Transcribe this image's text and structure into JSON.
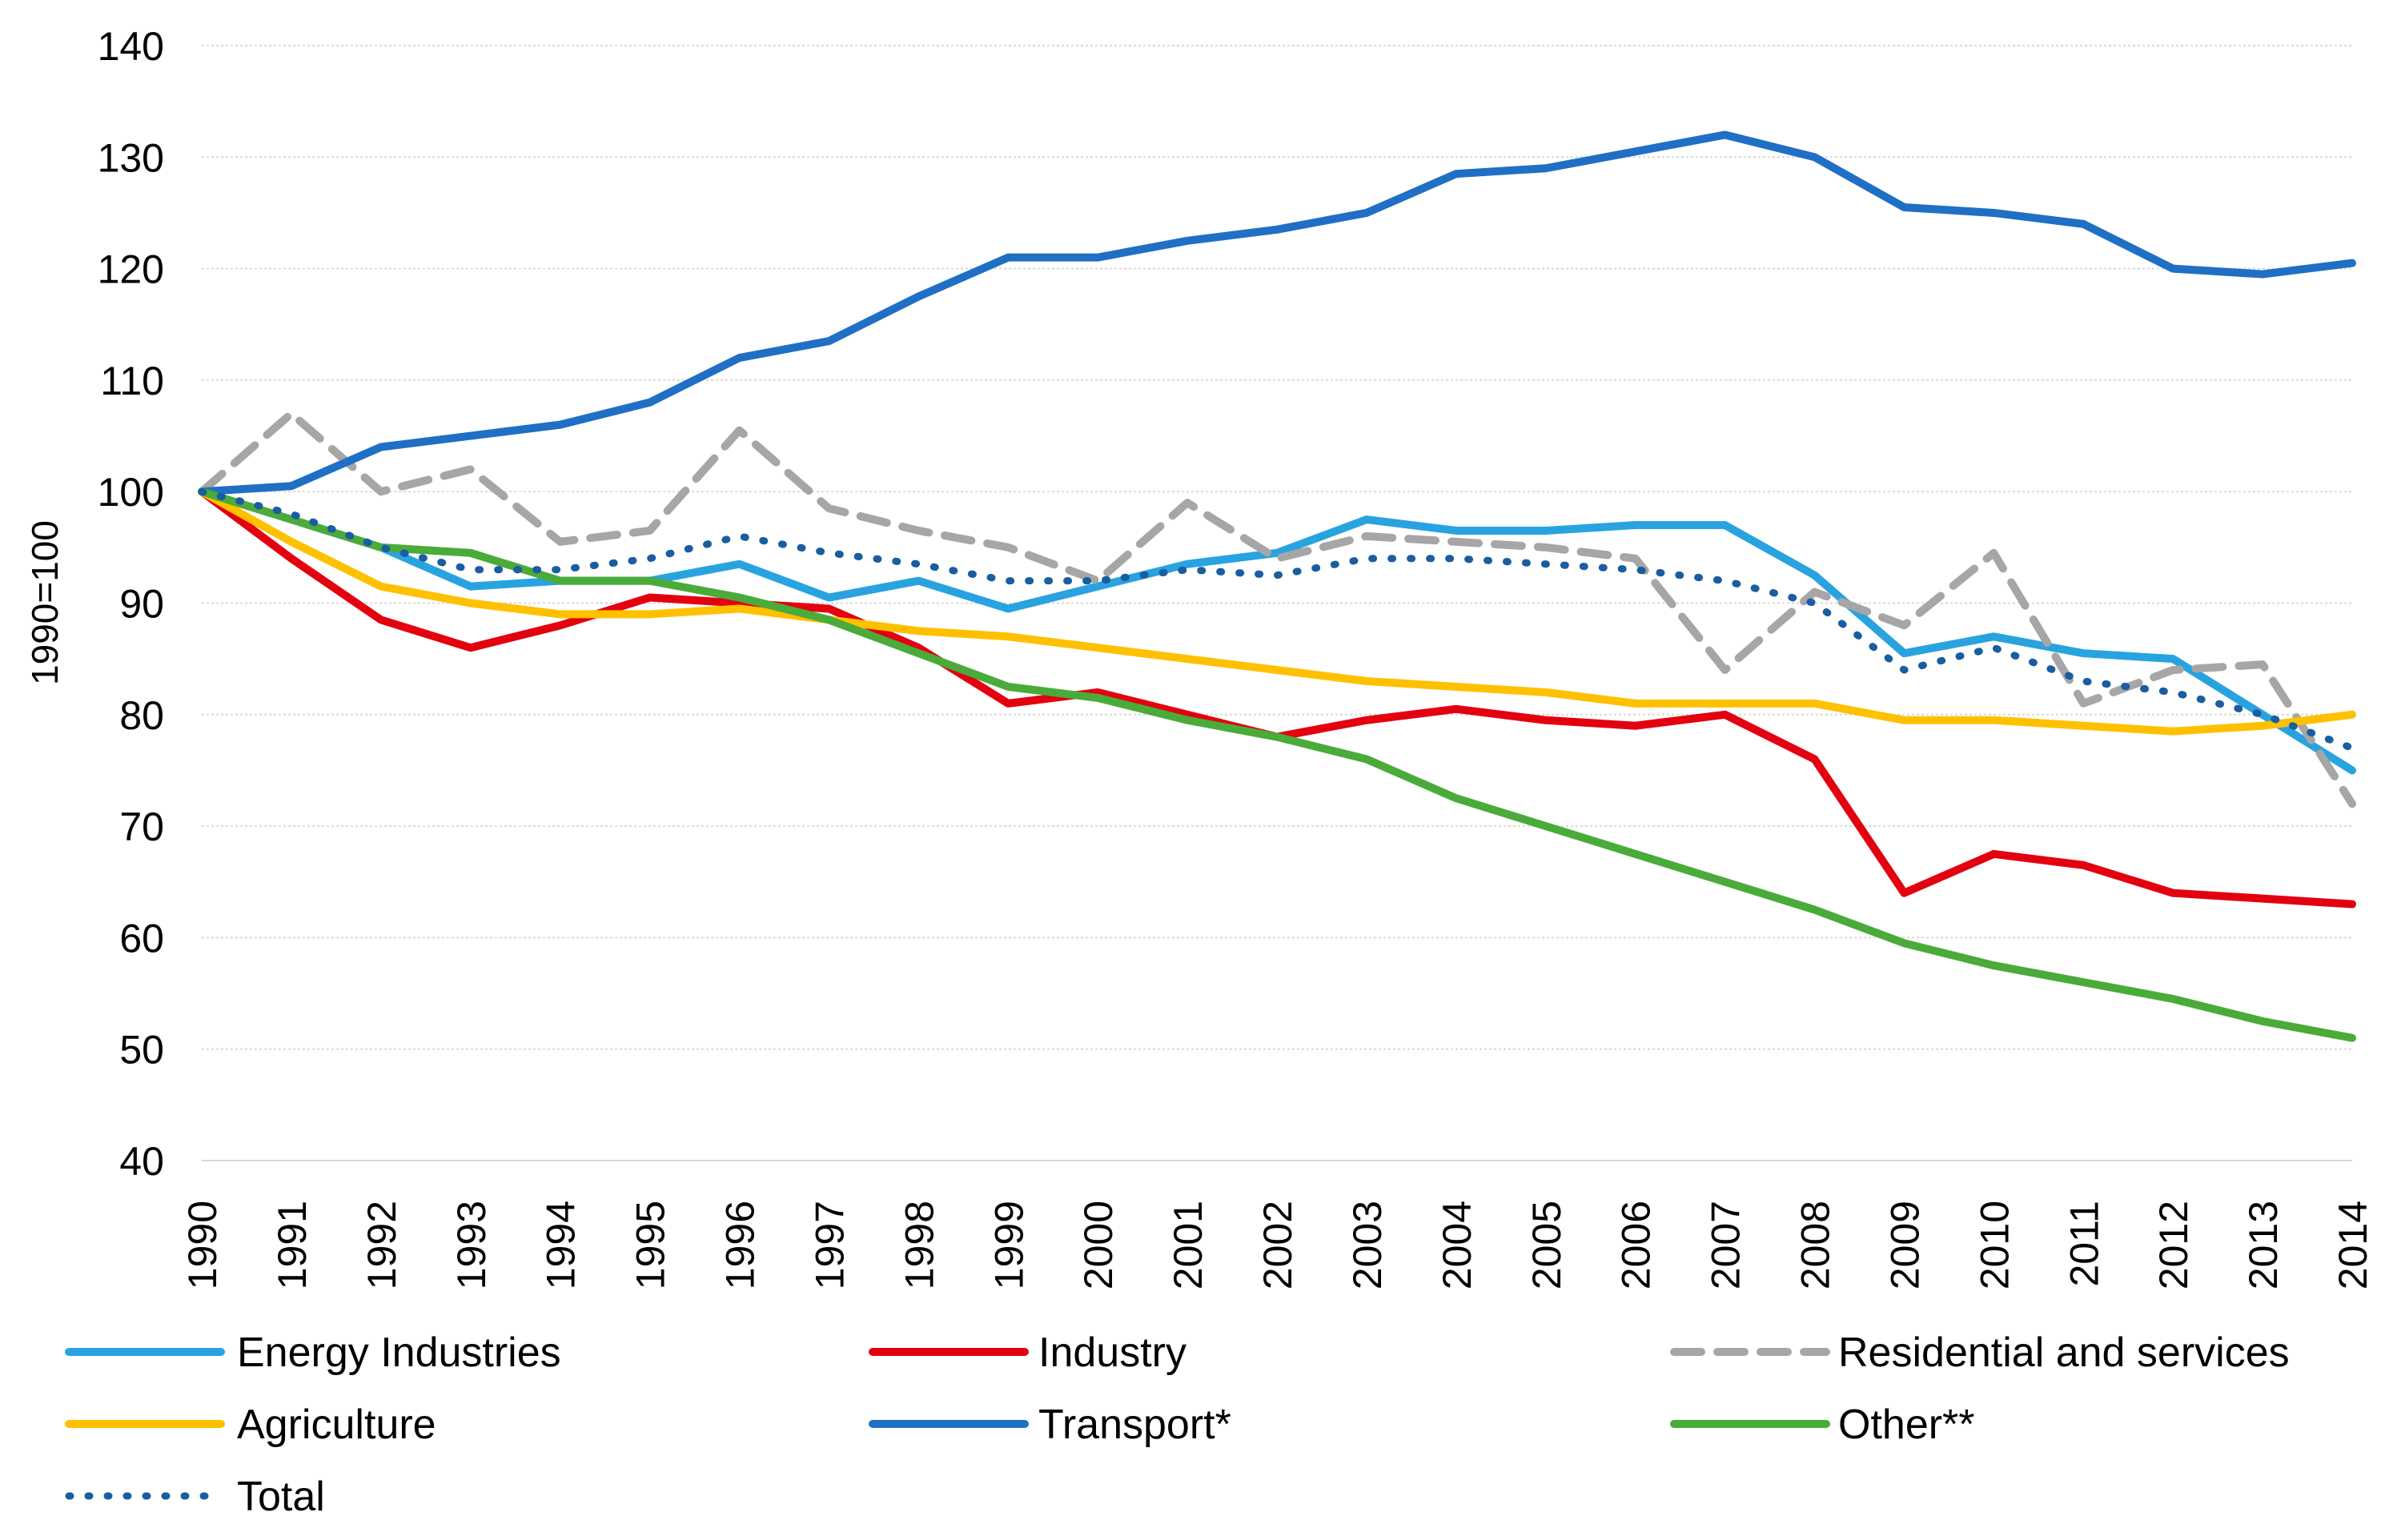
{
  "chart_data": {
    "type": "line",
    "title": "",
    "xlabel": "",
    "ylabel": "1990=100",
    "ylim": [
      40,
      140
    ],
    "yticks": [
      40,
      50,
      60,
      70,
      80,
      90,
      100,
      110,
      120,
      130,
      140
    ],
    "grid": true,
    "legend_position": "bottom",
    "x": [
      "1990",
      "1991",
      "1992",
      "1993",
      "1994",
      "1995",
      "1996",
      "1997",
      "1998",
      "1999",
      "2000",
      "2001",
      "2002",
      "2003",
      "2004",
      "2005",
      "2006",
      "2007",
      "2008",
      "2009",
      "2010",
      "2011",
      "2012",
      "2013",
      "2014"
    ],
    "series": [
      {
        "name": "Energy Industries",
        "color": "#29a3e0",
        "dash": "solid",
        "values": [
          100,
          97.5,
          95,
          91.5,
          92,
          92,
          93.5,
          90.5,
          92,
          89.5,
          91.5,
          93.5,
          94.5,
          97.5,
          96.5,
          96.5,
          97,
          97,
          92.5,
          85.5,
          87,
          85.5,
          85,
          80,
          75
        ]
      },
      {
        "name": "Industry",
        "color": "#e3000f",
        "dash": "solid",
        "values": [
          100,
          94,
          88.5,
          86,
          88,
          90.5,
          90,
          89.5,
          86,
          81,
          82,
          80,
          78,
          79.5,
          80.5,
          79.5,
          79,
          80,
          76,
          64,
          67.5,
          66.5,
          64,
          63.5,
          63
        ]
      },
      {
        "name": "Residential and services",
        "color": "#a6a6a6",
        "dash": "dashed",
        "values": [
          100,
          107,
          100,
          102,
          95.5,
          96.5,
          105.5,
          98.5,
          96.5,
          95,
          92,
          99,
          94,
          96,
          95.5,
          95,
          94,
          84,
          91,
          88,
          94.5,
          81,
          84,
          84.5,
          72
        ]
      },
      {
        "name": "Agriculture",
        "color": "#ffc000",
        "dash": "solid",
        "values": [
          100,
          95.5,
          91.5,
          90,
          89,
          89,
          89.5,
          88.5,
          87.5,
          87,
          86,
          85,
          84,
          83,
          82.5,
          82,
          81,
          81,
          81,
          79.5,
          79.5,
          79,
          78.5,
          79,
          80
        ]
      },
      {
        "name": "Transport*",
        "color": "#1f6fc5",
        "dash": "solid",
        "values": [
          100,
          100.5,
          104,
          105,
          106,
          108,
          112,
          113.5,
          117.5,
          121,
          121,
          122.5,
          123.5,
          125,
          128.5,
          129,
          130.5,
          132,
          130,
          125.5,
          125,
          124,
          120,
          119.5,
          120.5
        ]
      },
      {
        "name": "Other**",
        "color": "#4aab3a",
        "dash": "solid",
        "values": [
          100,
          97.5,
          95,
          94.5,
          92,
          92,
          90.5,
          88.5,
          85.5,
          82.5,
          81.5,
          79.5,
          78,
          76,
          72.5,
          70,
          67.5,
          65,
          62.5,
          59.5,
          57.5,
          56,
          54.5,
          52.5,
          51
        ]
      },
      {
        "name": "Total",
        "color": "#1a5da0",
        "dash": "dotted",
        "values": [
          100,
          98,
          95,
          93,
          93,
          94,
          96,
          94.5,
          93.5,
          92,
          92,
          93,
          92.5,
          94,
          94,
          93.5,
          93,
          92,
          90,
          84,
          86,
          83,
          82,
          80,
          77
        ]
      }
    ]
  }
}
